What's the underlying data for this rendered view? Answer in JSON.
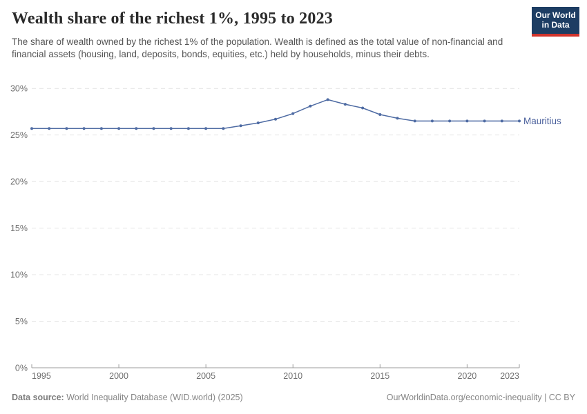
{
  "header": {
    "title": "Wealth share of the richest 1%, 1995 to 2023",
    "subtitle": "The share of wealth owned by the richest 1% of the population. Wealth is defined as the total value of non-financial and financial assets (housing, land, deposits, bonds, equities, etc.) held by households, minus their debts.",
    "logo": {
      "line1": "Our World",
      "line2": "in Data"
    }
  },
  "chart_data": {
    "type": "line",
    "title": "Wealth share of the richest 1%, 1995 to 2023",
    "x": [
      1995,
      1996,
      1997,
      1998,
      1999,
      2000,
      2001,
      2002,
      2003,
      2004,
      2005,
      2006,
      2007,
      2008,
      2009,
      2010,
      2011,
      2012,
      2013,
      2014,
      2015,
      2016,
      2017,
      2018,
      2019,
      2020,
      2021,
      2022,
      2023
    ],
    "series": [
      {
        "name": "Mauritius",
        "values": [
          25.7,
          25.7,
          25.7,
          25.7,
          25.7,
          25.7,
          25.7,
          25.7,
          25.7,
          25.7,
          25.7,
          25.7,
          26.0,
          26.3,
          26.7,
          27.3,
          28.1,
          28.8,
          28.3,
          27.9,
          27.2,
          26.8,
          26.5,
          26.5,
          26.5,
          26.5,
          26.5,
          26.5,
          26.5
        ]
      }
    ],
    "xlabel": "",
    "ylabel": "",
    "ylim": [
      0,
      30
    ],
    "yticks": [
      0,
      5,
      10,
      15,
      20,
      25,
      30
    ],
    "ytick_suffix": "%",
    "xticks": [
      1995,
      2000,
      2005,
      2010,
      2015,
      2020,
      2023
    ],
    "grid": "horizontal-dashed",
    "legend_position": "end-of-line-label",
    "marker": "dot"
  },
  "colors": {
    "line": "#4e6ba3",
    "grid": "#e2e2e2",
    "axis": "#9b9b9b",
    "tick_label": "#6e6e6e",
    "entity_label": "#4a609c",
    "logo_bg": "#1d3d63",
    "logo_accent": "#d1342c"
  },
  "footer": {
    "datasource_label": "Data source:",
    "datasource_value": " World Inequality Database (WID.world) (2025)",
    "link": "OurWorldinData.org/economic-inequality | CC BY"
  }
}
